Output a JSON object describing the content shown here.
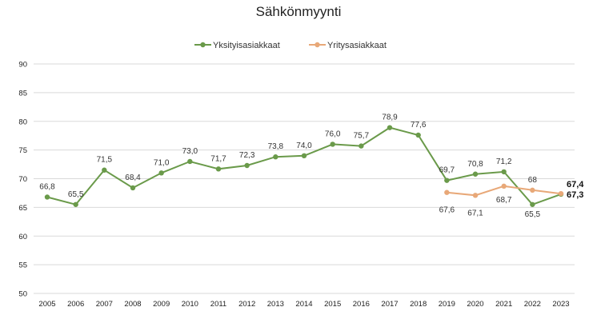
{
  "chart_data": {
    "type": "line",
    "title": "Sähkönmyynti",
    "xlabel": "",
    "ylabel": "",
    "ylim": [
      50,
      90
    ],
    "yticks": [
      "50",
      "55",
      "60",
      "65",
      "70",
      "75",
      "80",
      "85",
      "90"
    ],
    "grid": true,
    "legend_position": "top",
    "categories": [
      "2005",
      "2006",
      "2007",
      "2008",
      "2009",
      "2010",
      "2011",
      "2012",
      "2013",
      "2014",
      "2015",
      "2016",
      "2017",
      "2018",
      "2019",
      "2020",
      "2021",
      "2022",
      "2023"
    ],
    "series": [
      {
        "name": "Yksityisasiakkaat",
        "color": "#6a9a4a",
        "values": [
          66.8,
          65.5,
          71.5,
          68.4,
          71.0,
          73.0,
          71.7,
          72.3,
          73.8,
          74.0,
          76.0,
          75.7,
          78.9,
          77.6,
          69.7,
          70.8,
          71.2,
          65.5,
          67.3
        ],
        "labels": [
          "66,8",
          "65,5",
          "71,5",
          "68,4",
          "71,0",
          "73,0",
          "71,7",
          "72,3",
          "73,8",
          "74,0",
          "76,0",
          "75,7",
          "78,9",
          "77,6",
          "69,7",
          "70,8",
          "71,2",
          "65,5",
          "67,3"
        ]
      },
      {
        "name": "Yritysasiakkaat",
        "color": "#e8a878",
        "values": [
          null,
          null,
          null,
          null,
          null,
          null,
          null,
          null,
          null,
          null,
          null,
          null,
          null,
          null,
          67.6,
          67.1,
          68.7,
          68,
          67.4
        ],
        "labels": [
          "",
          "",
          "",
          "",
          "",
          "",
          "",
          "",
          "",
          "",
          "",
          "",
          "",
          "",
          "67,6",
          "67,1",
          "68,7",
          "68",
          "67,4"
        ]
      }
    ]
  }
}
